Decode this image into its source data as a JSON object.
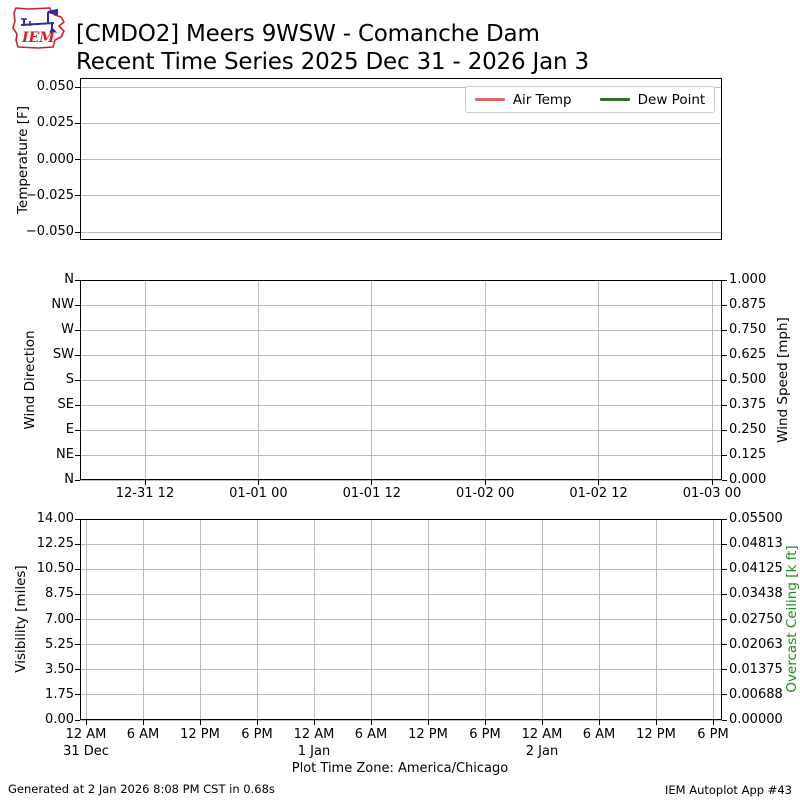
{
  "title": {
    "line1": "[CMDO2] Meers 9WSW - Comanche Dam",
    "line2": "Recent Time Series 2025 Dec 31 - 2026 Jan 3"
  },
  "logo": {
    "text": "IEM"
  },
  "legend": {
    "items": [
      {
        "label": "Air Temp",
        "color": "#d96a6a"
      },
      {
        "label": "Dew Point",
        "color": "#2e6f34"
      }
    ]
  },
  "colors": {
    "air_temp": "#d96a6a",
    "dew_point": "#2e6f34",
    "overcast_ceiling_label": "#1f8b1f",
    "grid": "#b9b9b9",
    "spine": "#000000"
  },
  "chart_data": [
    {
      "type": "line",
      "panel": "temperature",
      "ylabel": "Temperature [F]",
      "ytick_labels": [
        "0.050",
        "0.025",
        "0.000",
        "−0.025",
        "−0.050"
      ],
      "ylim": [
        -0.055,
        0.055
      ],
      "grid": "horizontal",
      "legend_position": "upper right",
      "series": [
        {
          "name": "Air Temp",
          "color": "#d96a6a",
          "values": []
        },
        {
          "name": "Dew Point",
          "color": "#2e6f34",
          "values": []
        }
      ],
      "note": "no data plotted"
    },
    {
      "type": "line",
      "panel": "wind",
      "ylabel_left": "Wind Direction",
      "ytick_labels_left": [
        "N",
        "NW",
        "W",
        "SW",
        "S",
        "SE",
        "E",
        "NE",
        "N"
      ],
      "ylabel_right": "Wind Speed [mph]",
      "ytick_labels_right": [
        "1.000",
        "0.875",
        "0.750",
        "0.625",
        "0.500",
        "0.375",
        "0.250",
        "0.125",
        "0.000"
      ],
      "ylim_right": [
        0,
        1
      ],
      "xtick_labels": [
        "12-31 12",
        "01-01 00",
        "01-01 12",
        "01-02 00",
        "01-02 12",
        "01-03 00"
      ],
      "grid": "both",
      "series": []
    },
    {
      "type": "line",
      "panel": "visibility",
      "ylabel_left": "Visibility [miles]",
      "ytick_labels_left": [
        "14.00",
        "12.25",
        "10.50",
        "8.75",
        "7.00",
        "5.25",
        "3.50",
        "1.75",
        "0.00"
      ],
      "ylim_left": [
        0,
        14
      ],
      "ylabel_right": "Overcast Ceiling [k ft]",
      "ytick_labels_right": [
        "0.05500",
        "0.04813",
        "0.04125",
        "0.03438",
        "0.02750",
        "0.02063",
        "0.01375",
        "0.00688",
        "0.00000"
      ],
      "ylim_right": [
        0,
        0.055
      ],
      "xtick_labels": [
        "12 AM",
        "6 AM",
        "12 PM",
        "6 PM",
        "12 AM",
        "6 AM",
        "12 PM",
        "6 PM",
        "12 AM",
        "6 AM",
        "12 PM",
        "6 PM"
      ],
      "xdate_labels": [
        {
          "index": 0,
          "label": "31 Dec"
        },
        {
          "index": 4,
          "label": "1 Jan"
        },
        {
          "index": 8,
          "label": "2 Jan"
        }
      ],
      "grid": "both",
      "series": []
    }
  ],
  "footer": {
    "timezone": "Plot Time Zone: America/Chicago",
    "generated": "Generated at 2 Jan 2026 8:08 PM CST in 0.68s",
    "app": "IEM Autoplot App #43"
  }
}
